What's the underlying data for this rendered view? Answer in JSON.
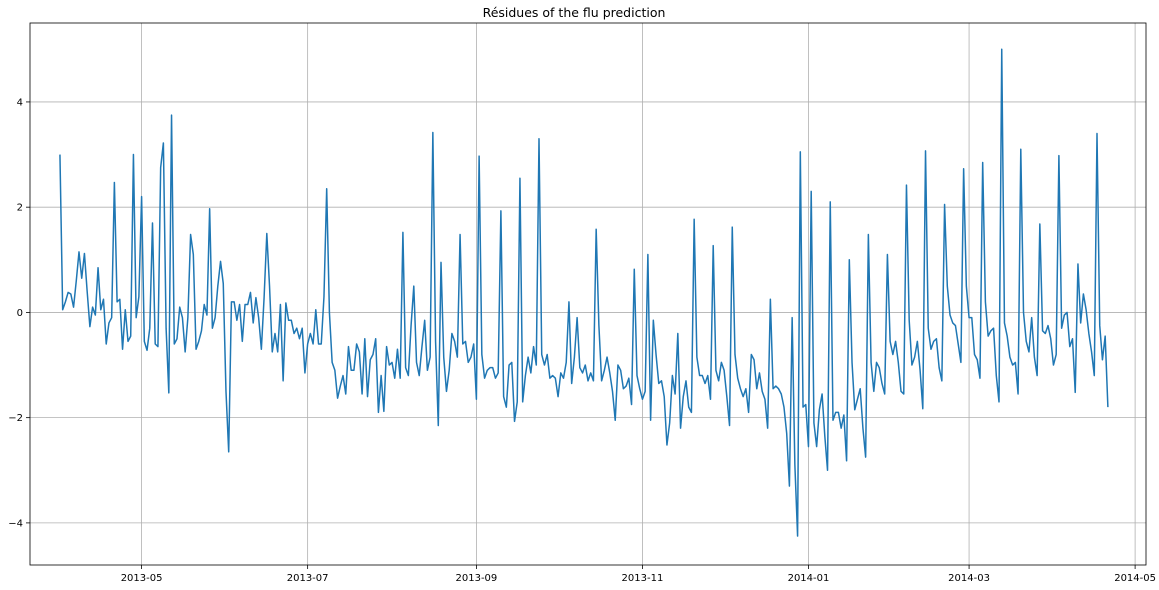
{
  "chart_data": {
    "type": "line",
    "title": "Résidues of the flu prediction",
    "xlabel": "",
    "ylabel": "",
    "grid": true,
    "x_axis": {
      "type": "date",
      "range": [
        "2013-03-21",
        "2014-05-05"
      ],
      "ticks": [
        {
          "date": "2013-05-01",
          "label": "2013-05"
        },
        {
          "date": "2013-07-01",
          "label": "2013-07"
        },
        {
          "date": "2013-09-01",
          "label": "2013-09"
        },
        {
          "date": "2013-11-01",
          "label": "2013-11"
        },
        {
          "date": "2014-01-01",
          "label": "2014-01"
        },
        {
          "date": "2014-03-01",
          "label": "2014-03"
        },
        {
          "date": "2014-05-01",
          "label": "2014-05"
        }
      ]
    },
    "y_axis": {
      "range": [
        -4.8,
        5.5
      ],
      "ticks": [
        {
          "value": -4,
          "label": "−4"
        },
        {
          "value": -2,
          "label": "−2"
        },
        {
          "value": 0,
          "label": "0"
        },
        {
          "value": 2,
          "label": "2"
        },
        {
          "value": 4,
          "label": "4"
        }
      ]
    },
    "series": [
      {
        "color": "#1f77b4",
        "start_date": "2013-04-01",
        "step_days": 1,
        "values": [
          3.0,
          0.05,
          0.2,
          0.38,
          0.35,
          0.1,
          0.6,
          1.15,
          0.65,
          1.12,
          0.4,
          -0.27,
          0.1,
          -0.05,
          0.85,
          0.05,
          0.25,
          -0.6,
          -0.2,
          -0.1,
          2.47,
          0.2,
          0.25,
          -0.7,
          0.05,
          -0.55,
          -0.45,
          3.0,
          -0.1,
          0.3,
          2.2,
          -0.55,
          -0.72,
          -0.3,
          1.7,
          -0.6,
          -0.65,
          2.75,
          3.22,
          -0.3,
          -1.53,
          3.75,
          -0.6,
          -0.5,
          0.1,
          -0.1,
          -0.75,
          -0.1,
          1.48,
          1.1,
          -0.7,
          -0.55,
          -0.35,
          0.15,
          -0.05,
          1.97,
          -0.3,
          -0.1,
          0.5,
          0.97,
          0.55,
          -1.5,
          -2.65,
          0.2,
          0.2,
          -0.15,
          0.15,
          -0.55,
          0.15,
          0.15,
          0.38,
          -0.2,
          0.28,
          -0.1,
          -0.7,
          0.28,
          1.5,
          0.5,
          -0.75,
          -0.4,
          -0.75,
          0.15,
          -1.3,
          0.18,
          -0.15,
          -0.15,
          -0.4,
          -0.3,
          -0.5,
          -0.3,
          -1.15,
          -0.6,
          -0.4,
          -0.6,
          0.05,
          -0.6,
          -0.6,
          0.3,
          2.35,
          0.0,
          -0.95,
          -1.1,
          -1.63,
          -1.4,
          -1.2,
          -1.55,
          -0.65,
          -1.1,
          -1.1,
          -0.6,
          -0.75,
          -1.55,
          -0.5,
          -1.6,
          -0.9,
          -0.8,
          -0.5,
          -1.9,
          -1.2,
          -1.88,
          -0.65,
          -1.0,
          -0.95,
          -1.25,
          -0.7,
          -1.25,
          1.52,
          -1.05,
          -1.2,
          -0.25,
          0.5,
          -0.95,
          -1.2,
          -0.65,
          -0.15,
          -1.1,
          -0.85,
          3.42,
          -0.55,
          -2.15,
          0.95,
          -0.85,
          -1.5,
          -1.1,
          -0.4,
          -0.55,
          -0.85,
          1.48,
          -0.6,
          -0.55,
          -0.95,
          -0.85,
          -0.6,
          -1.65,
          2.97,
          -0.8,
          -1.25,
          -1.1,
          -1.05,
          -1.05,
          -1.25,
          -1.15,
          1.93,
          -1.6,
          -1.8,
          -1.0,
          -0.95,
          -2.07,
          -1.7,
          2.55,
          -1.7,
          -1.2,
          -0.85,
          -1.15,
          -0.65,
          -1.0,
          3.3,
          -0.8,
          -1.0,
          -0.8,
          -1.25,
          -1.2,
          -1.25,
          -1.6,
          -1.15,
          -1.25,
          -0.95,
          0.2,
          -1.35,
          -0.85,
          -0.1,
          -1.05,
          -1.15,
          -1.0,
          -1.3,
          -1.15,
          -1.3,
          1.58,
          -0.25,
          -1.3,
          -1.1,
          -0.85,
          -1.15,
          -1.5,
          -2.05,
          -1.0,
          -1.1,
          -1.45,
          -1.4,
          -1.25,
          -1.75,
          0.82,
          -1.2,
          -1.45,
          -1.65,
          -1.5,
          1.1,
          -2.05,
          -0.15,
          -0.8,
          -1.35,
          -1.3,
          -1.6,
          -2.52,
          -2.1,
          -1.2,
          -1.55,
          -0.4,
          -2.2,
          -1.6,
          -1.3,
          -1.8,
          -1.9,
          1.77,
          -0.85,
          -1.2,
          -1.2,
          -1.35,
          -1.2,
          -1.65,
          1.27,
          -1.1,
          -1.3,
          -0.95,
          -1.1,
          -1.6,
          -2.15,
          1.62,
          -0.8,
          -1.25,
          -1.45,
          -1.6,
          -1.45,
          -1.9,
          -0.8,
          -0.9,
          -1.45,
          -1.15,
          -1.5,
          -1.65,
          -2.2,
          0.25,
          -1.45,
          -1.4,
          -1.45,
          -1.55,
          -1.8,
          -2.3,
          -3.3,
          -0.1,
          -2.9,
          -4.25,
          3.05,
          -1.8,
          -1.75,
          -2.55,
          2.3,
          -2.1,
          -2.55,
          -1.85,
          -1.55,
          -2.35,
          -3.0,
          2.1,
          -2.05,
          -1.9,
          -1.9,
          -2.2,
          -1.95,
          -2.82,
          1.0,
          -0.95,
          -1.85,
          -1.65,
          -1.45,
          -2.2,
          -2.75,
          1.48,
          -0.95,
          -1.5,
          -0.95,
          -1.05,
          -1.35,
          -1.55,
          1.1,
          -0.55,
          -0.8,
          -0.55,
          -0.95,
          -1.5,
          -1.55,
          2.42,
          -0.15,
          -1.0,
          -0.85,
          -0.55,
          -1.1,
          -1.83,
          3.07,
          -0.3,
          -0.7,
          -0.55,
          -0.5,
          -1.05,
          -1.3,
          2.05,
          0.5,
          -0.05,
          -0.2,
          -0.25,
          -0.6,
          -0.95,
          2.73,
          0.5,
          -0.1,
          -0.1,
          -0.8,
          -0.9,
          -1.25,
          2.85,
          0.2,
          -0.45,
          -0.35,
          -0.3,
          -1.2,
          -1.7,
          5.0,
          -0.2,
          -0.45,
          -0.85,
          -1.0,
          -0.95,
          -1.55,
          3.1,
          0.0,
          -0.55,
          -0.75,
          -0.1,
          -0.85,
          -1.2,
          1.68,
          -0.35,
          -0.4,
          -0.25,
          -0.5,
          -1.0,
          -0.8,
          2.98,
          -0.3,
          -0.05,
          0.0,
          -0.65,
          -0.5,
          -1.52,
          0.92,
          -0.2,
          0.35,
          0.05,
          -0.4,
          -0.75,
          -1.2,
          3.4,
          -0.25,
          -0.9,
          -0.45,
          -1.8
        ]
      }
    ]
  }
}
